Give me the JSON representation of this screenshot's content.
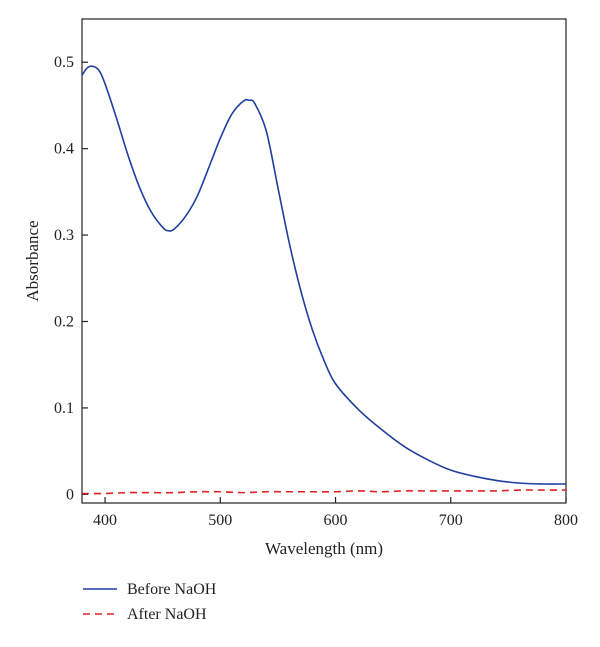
{
  "chart_data": {
    "type": "line",
    "title": "",
    "xlabel": "Wavelength (nm)",
    "ylabel": "Absorbance",
    "xlim": [
      380,
      800
    ],
    "ylim": [
      -0.01,
      0.55
    ],
    "xticks": [
      400,
      500,
      600,
      700,
      800
    ],
    "yticks": [
      0,
      0.1,
      0.2,
      0.3,
      0.4,
      0.5
    ],
    "ytick_labels": [
      "0",
      "0.1",
      "0.2",
      "0.3",
      "0.4",
      "0.5"
    ],
    "grid": false,
    "legend_position": "bottom-left, below plot",
    "series": [
      {
        "name": "Before NaOH",
        "color": "#1f3f9f",
        "style": "solid",
        "x": [
          380,
          385,
          390,
          395,
          400,
          410,
          420,
          430,
          440,
          450,
          455,
          460,
          470,
          480,
          490,
          500,
          510,
          520,
          525,
          530,
          540,
          550,
          560,
          570,
          580,
          590,
          600,
          620,
          640,
          660,
          680,
          700,
          720,
          740,
          760,
          780,
          800
        ],
        "y": [
          0.485,
          0.494,
          0.495,
          0.49,
          0.475,
          0.435,
          0.392,
          0.355,
          0.327,
          0.309,
          0.305,
          0.307,
          0.322,
          0.345,
          0.378,
          0.412,
          0.44,
          0.455,
          0.456,
          0.452,
          0.42,
          0.355,
          0.29,
          0.235,
          0.19,
          0.155,
          0.128,
          0.098,
          0.075,
          0.055,
          0.04,
          0.028,
          0.021,
          0.016,
          0.013,
          0.012,
          0.012
        ]
      },
      {
        "name": "After NaOH",
        "color": "#e02020",
        "style": "dashed",
        "x": [
          380,
          400,
          420,
          440,
          460,
          480,
          500,
          520,
          540,
          560,
          580,
          600,
          620,
          640,
          660,
          680,
          700,
          720,
          740,
          760,
          780,
          800
        ],
        "y": [
          0.001,
          0.001,
          0.002,
          0.002,
          0.002,
          0.003,
          0.003,
          0.002,
          0.003,
          0.003,
          0.003,
          0.003,
          0.004,
          0.003,
          0.004,
          0.004,
          0.004,
          0.004,
          0.004,
          0.005,
          0.005,
          0.005
        ]
      }
    ]
  }
}
